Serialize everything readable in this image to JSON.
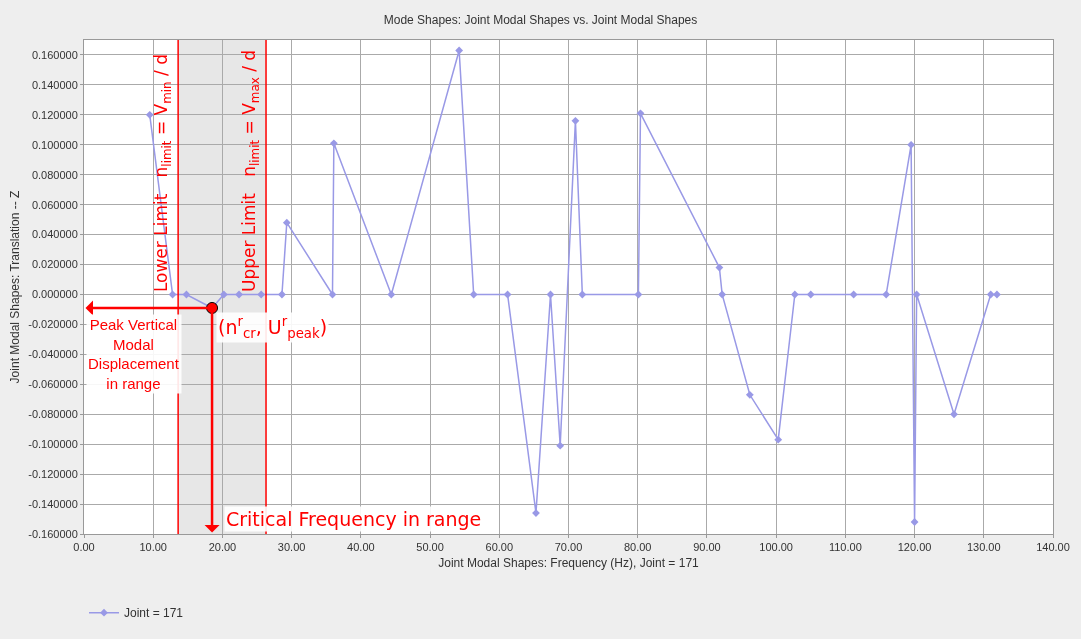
{
  "chart_data": {
    "type": "line",
    "title": "Mode Shapes: Joint Modal Shapes vs. Joint Modal Shapes",
    "xlabel": "Joint Modal Shapes: Frequency (Hz), Joint = 171",
    "ylabel": "Joint Modal Shapes: Translation -- Z",
    "series": [
      {
        "name": "Joint = 171",
        "color": "#9999e6",
        "x": [
          9.5,
          12.8,
          14.8,
          18.5,
          20.2,
          22.4,
          25.6,
          28.6,
          29.3,
          35.9,
          36.1,
          44.4,
          54.2,
          56.3,
          61.2,
          65.3,
          67.4,
          68.8,
          71.0,
          72.0,
          80.1,
          80.4,
          91.8,
          92.2,
          96.2,
          100.3,
          102.7,
          105.0,
          111.2,
          115.9,
          119.5,
          120.0,
          120.3,
          125.7,
          131.0,
          131.9
        ],
        "values": [
          0.12,
          0,
          0,
          -0.009,
          0,
          0,
          0,
          0,
          0.048,
          0,
          0.101,
          0,
          0.163,
          0,
          0,
          -0.146,
          0,
          -0.101,
          0.116,
          0,
          0,
          0.121,
          0.018,
          0,
          -0.067,
          -0.097,
          0,
          0,
          0,
          0,
          0.1,
          -0.152,
          0,
          -0.08,
          0,
          0
        ]
      },
      {
        "type": "scatter",
        "color": "#ff0000",
        "marker": "circle",
        "x": [
          18.5
        ],
        "values": [
          -0.009
        ]
      }
    ],
    "xlim": [
      0,
      140
    ],
    "xticks": [
      {
        "value": 0,
        "label": "0.00"
      },
      {
        "value": 10,
        "label": "10.00"
      },
      {
        "value": 20,
        "label": "20.00"
      },
      {
        "value": 30,
        "label": "30.00"
      },
      {
        "value": 40,
        "label": "40.00"
      },
      {
        "value": 50,
        "label": "50.00"
      },
      {
        "value": 60,
        "label": "60.00"
      },
      {
        "value": 70,
        "label": "70.00"
      },
      {
        "value": 80,
        "label": "80.00"
      },
      {
        "value": 90,
        "label": "90.00"
      },
      {
        "value": 100,
        "label": "100.00"
      },
      {
        "value": 110,
        "label": "110.00"
      },
      {
        "value": 120,
        "label": "120.00"
      },
      {
        "value": 130,
        "label": "130.00"
      },
      {
        "value": 140,
        "label": "140.00"
      }
    ],
    "ylim": [
      -0.16,
      0.17
    ],
    "yticks": [
      {
        "value": -0.16,
        "label": "-0.160000"
      },
      {
        "value": -0.14,
        "label": "-0.140000"
      },
      {
        "value": -0.12,
        "label": "-0.120000"
      },
      {
        "value": -0.1,
        "label": "-0.100000"
      },
      {
        "value": -0.08,
        "label": "-0.080000"
      },
      {
        "value": -0.06,
        "label": "-0.060000"
      },
      {
        "value": -0.04,
        "label": "-0.040000"
      },
      {
        "value": -0.02,
        "label": "-0.020000"
      },
      {
        "value": 0,
        "label": "0.000000"
      },
      {
        "value": 0.02,
        "label": "0.020000"
      },
      {
        "value": 0.04,
        "label": "0.040000"
      },
      {
        "value": 0.06,
        "label": "0.060000"
      },
      {
        "value": 0.08,
        "label": "0.080000"
      },
      {
        "value": 0.1,
        "label": "0.100000"
      },
      {
        "value": 0.12,
        "label": "0.120000"
      },
      {
        "value": 0.14,
        "label": "0.140000"
      },
      {
        "value": 0.16,
        "label": "0.160000"
      }
    ],
    "bands": [
      {
        "axis": "x",
        "from": 13.6,
        "to": 26.3,
        "color": "#bbbbbb"
      }
    ],
    "ref_lines": [
      {
        "axis": "x",
        "value": 13.6,
        "label": "Lower Limit   n$_{limit}$ = V$_{min}$ / d",
        "color": "#ff0000"
      },
      {
        "axis": "x",
        "value": 26.3,
        "label": "Upper Limit   n$_{limit}$ = V$_{max}$ / d",
        "color": "#ff0000"
      }
    ],
    "annotations": [
      {
        "text": "(n$^{r}$$_{cr}$, U$^{r}$$_{peak}$)",
        "x": 18.5,
        "y": -0.009
      },
      "Peak Vertical\nModal\nDisplacement\nin range",
      "Critical Frequency in range"
    ],
    "grid": true,
    "legend": "bottom",
    "marker": "diamond",
    "line_style": "solid"
  }
}
